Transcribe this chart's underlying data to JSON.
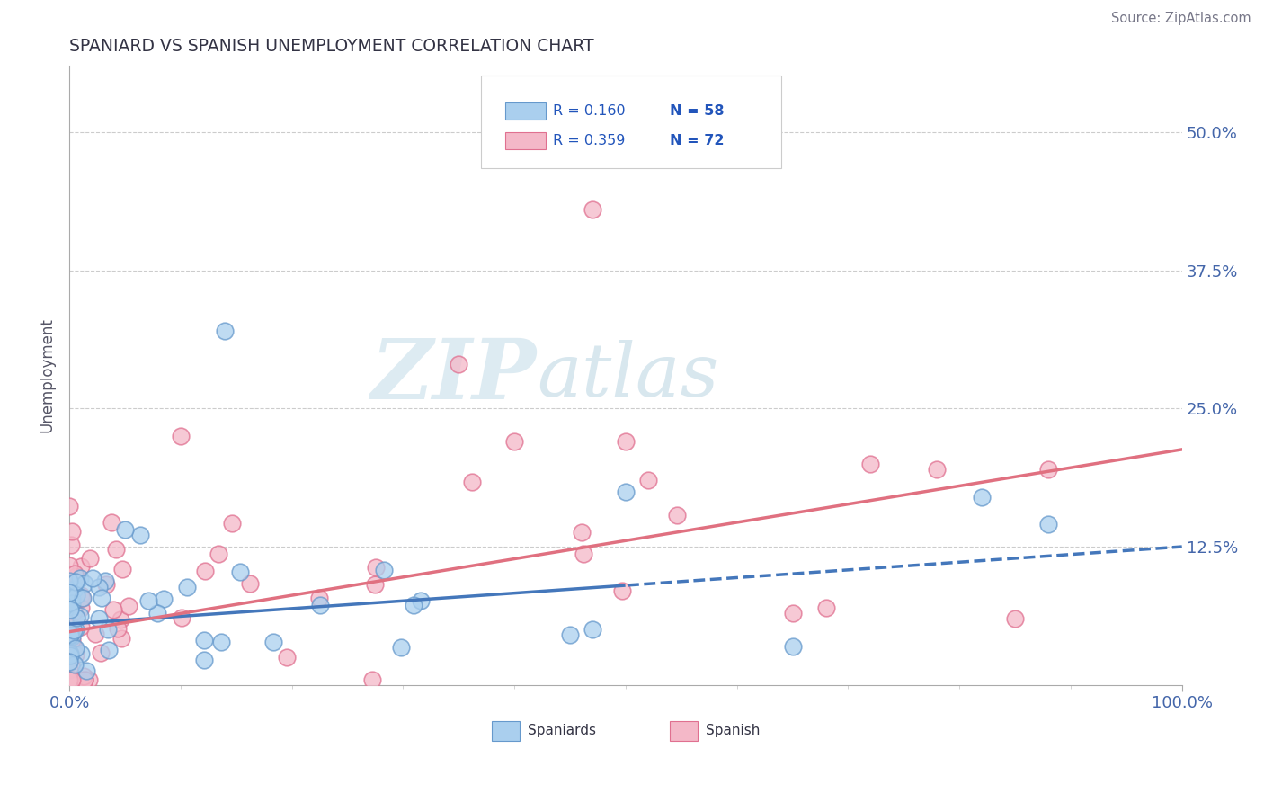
{
  "title": "SPANIARD VS SPANISH UNEMPLOYMENT CORRELATION CHART",
  "source_text": "Source: ZipAtlas.com",
  "ylabel": "Unemployment",
  "watermark_zip": "ZIP",
  "watermark_atlas": "atlas",
  "legend_r1": "R = 0.160",
  "legend_n1": "N = 58",
  "legend_r2": "R = 0.359",
  "legend_n2": "N = 72",
  "xlim": [
    0,
    1.0
  ],
  "ylim": [
    0,
    0.56
  ],
  "ytick_positions": [
    0.125,
    0.25,
    0.375,
    0.5
  ],
  "ytick_labels": [
    "12.5%",
    "25.0%",
    "37.5%",
    "50.0%"
  ],
  "color_spaniards": "#aacfee",
  "color_spanish": "#f4b8c8",
  "edge_spaniards": "#6699cc",
  "edge_spanish": "#e07090",
  "line_color_blue": "#4477bb",
  "line_color_pink": "#e07080",
  "background_color": "#ffffff",
  "title_color": "#333344",
  "axis_label_color": "#4466aa",
  "legend_text_color": "#2255bb",
  "n_spaniards": 58,
  "n_spanish": 72,
  "blue_line_slope": 0.07,
  "blue_line_intercept": 0.055,
  "pink_line_slope": 0.165,
  "pink_line_intercept": 0.048
}
